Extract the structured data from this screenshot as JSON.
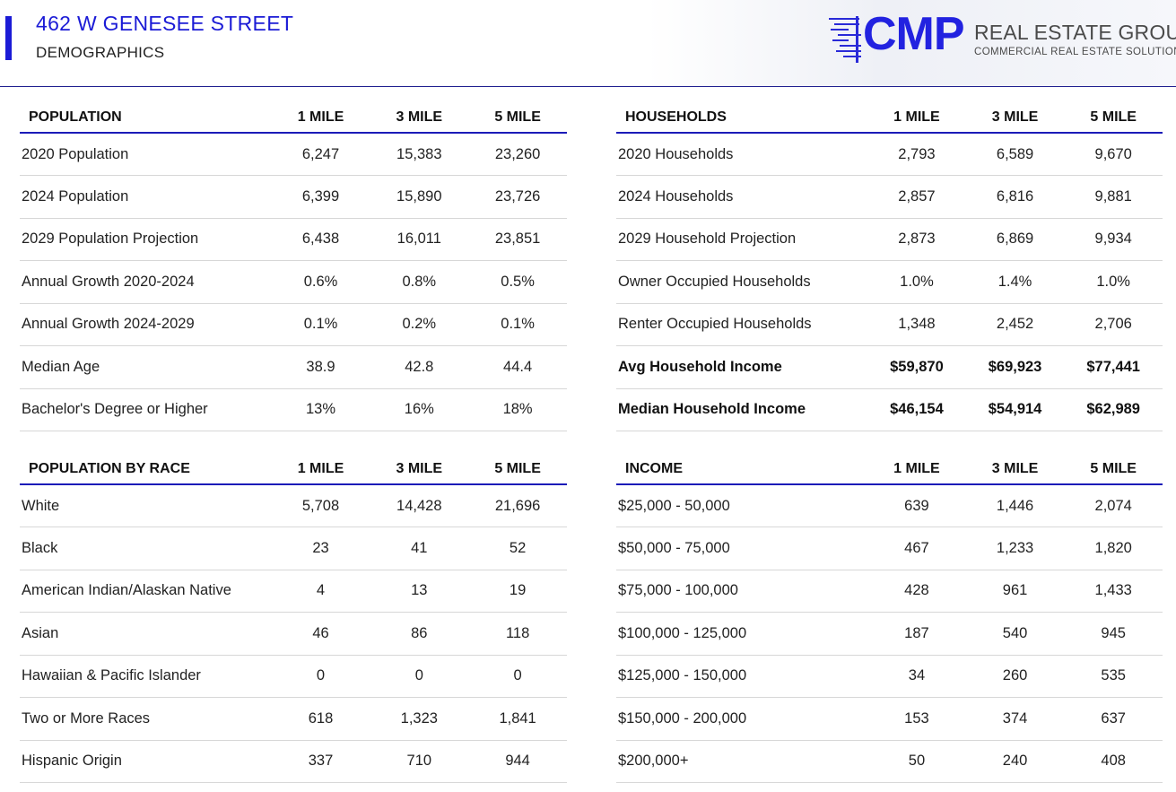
{
  "header": {
    "address": "462 W GENESEE STREET",
    "subtitle": "DEMOGRAPHICS",
    "logo_cmp": "CMP",
    "logo_name": "REAL ESTATE GROUP",
    "logo_tagline": "COMMERCIAL REAL ESTATE SOLUTIONS",
    "accent_color": "#1b1bd6"
  },
  "tables": {
    "population": {
      "header": [
        "POPULATION",
        "1 MILE",
        "3 MILE",
        "5 MILE"
      ],
      "rows": [
        [
          "2020 Population",
          "6,247",
          "15,383",
          "23,260"
        ],
        [
          "2024 Population",
          "6,399",
          "15,890",
          "23,726"
        ],
        [
          "2029 Population Projection",
          "6,438",
          "16,011",
          "23,851"
        ],
        [
          "Annual Growth 2020-2024",
          "0.6%",
          "0.8%",
          "0.5%"
        ],
        [
          "Annual Growth 2024-2029",
          "0.1%",
          "0.2%",
          "0.1%"
        ],
        [
          "Median Age",
          "38.9",
          "42.8",
          "44.4"
        ],
        [
          "Bachelor's Degree or Higher",
          "13%",
          "16%",
          "18%"
        ]
      ]
    },
    "households": {
      "header": [
        "HOUSEHOLDS",
        "1 MILE",
        "3 MILE",
        "5 MILE"
      ],
      "rows": [
        [
          "2020 Households",
          "2,793",
          "6,589",
          "9,670"
        ],
        [
          "2024 Households",
          "2,857",
          "6,816",
          "9,881"
        ],
        [
          "2029 Household Projection",
          "2,873",
          "6,869",
          "9,934"
        ],
        [
          "Owner Occupied Households",
          "1.0%",
          "1.4%",
          "1.0%"
        ],
        [
          "Renter Occupied Households",
          "1,348",
          "2,452",
          "2,706"
        ],
        [
          "Avg Household Income",
          "$59,870",
          "$69,923",
          "$77,441"
        ],
        [
          "Median Household Income",
          "$46,154",
          "$54,914",
          "$62,989"
        ]
      ]
    },
    "race": {
      "header": [
        "POPULATION BY RACE",
        "1 MILE",
        "3 MILE",
        "5 MILE"
      ],
      "rows": [
        [
          "White",
          "5,708",
          "14,428",
          "21,696"
        ],
        [
          "Black",
          "23",
          "41",
          "52"
        ],
        [
          "American Indian/Alaskan Native",
          "4",
          "13",
          "19"
        ],
        [
          "Asian",
          "46",
          "86",
          "118"
        ],
        [
          "Hawaiian & Pacific Islander",
          "0",
          "0",
          "0"
        ],
        [
          "Two or More Races",
          "618",
          "1,323",
          "1,841"
        ],
        [
          "Hispanic Origin",
          "337",
          "710",
          "944"
        ]
      ]
    },
    "income": {
      "header": [
        "INCOME",
        "1 MILE",
        "3 MILE",
        "5 MILE"
      ],
      "rows": [
        [
          "$25,000 - 50,000",
          "639",
          "1,446",
          "2,074"
        ],
        [
          "$50,000 - 75,000",
          "467",
          "1,233",
          "1,820"
        ],
        [
          "$75,000 - 100,000",
          "428",
          "961",
          "1,433"
        ],
        [
          "$100,000 - 125,000",
          "187",
          "540",
          "945"
        ],
        [
          "$125,000 - 150,000",
          "34",
          "260",
          "535"
        ],
        [
          "$150,000 - 200,000",
          "153",
          "374",
          "637"
        ],
        [
          "$200,000+",
          "50",
          "240",
          "408"
        ]
      ]
    }
  }
}
